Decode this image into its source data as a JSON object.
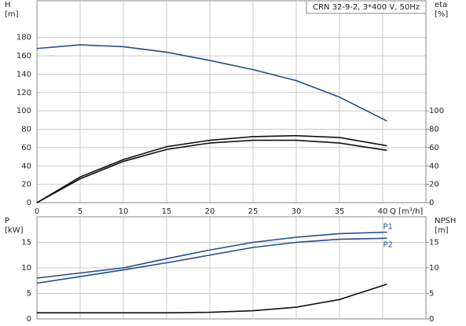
{
  "chart_data": [
    {
      "type": "line",
      "title": "CRN 32-9-2, 3*400 V, 50Hz",
      "ylabel": "H",
      "yunit": "[m]",
      "y2label": "eta",
      "y2unit": "[%]",
      "xlabel": "Q [m³/h]",
      "x": [
        0,
        5,
        10,
        15,
        20,
        25,
        30,
        35,
        40.5
      ],
      "xlim": [
        0,
        45
      ],
      "xticks": [
        0,
        5,
        10,
        15,
        20,
        25,
        30,
        35,
        40
      ],
      "ylim": [
        0,
        220
      ],
      "yticks": [
        0,
        20,
        40,
        60,
        80,
        100,
        120,
        140,
        160,
        180
      ],
      "y2lim": [
        0,
        220
      ],
      "y2ticks": [
        0,
        20,
        40,
        60,
        80,
        100
      ],
      "grid": true,
      "series": [
        {
          "color": "#1f4e8c",
          "axis": "y",
          "values": [
            168,
            172,
            170,
            164,
            155,
            145,
            133,
            115,
            89
          ]
        },
        {
          "color": "#111111",
          "axis": "y2",
          "values": [
            0,
            28,
            47,
            61,
            68,
            72,
            73,
            71,
            62
          ]
        },
        {
          "color": "#111111",
          "axis": "y2",
          "values": [
            0,
            26,
            45,
            58,
            65,
            68,
            68,
            65,
            57
          ]
        }
      ]
    },
    {
      "type": "line",
      "ylabel": "P",
      "yunit": "[kW]",
      "y2label": "NPSH",
      "y2unit": "[m]",
      "x": [
        0,
        5,
        10,
        15,
        20,
        25,
        30,
        35,
        40.5
      ],
      "xlim": [
        0,
        45
      ],
      "xticks": [
        0,
        5,
        10,
        15,
        20,
        25,
        30,
        35,
        40
      ],
      "ylim": [
        0,
        20
      ],
      "yticks": [
        0,
        5,
        10,
        15
      ],
      "y2lim": [
        0,
        20
      ],
      "y2ticks": [
        0,
        5,
        10,
        15
      ],
      "grid": true,
      "series": [
        {
          "name": "P1",
          "color": "#1f4e8c",
          "axis": "y",
          "values": [
            8,
            9,
            10,
            11.8,
            13.5,
            15,
            16,
            16.7,
            17
          ]
        },
        {
          "name": "P2",
          "color": "#1f4e8c",
          "axis": "y",
          "values": [
            7,
            8.3,
            9.6,
            11,
            12.5,
            14,
            15,
            15.6,
            15.8
          ]
        },
        {
          "color": "#111111",
          "axis": "y2",
          "values": [
            1.2,
            1.2,
            1.2,
            1.2,
            1.3,
            1.6,
            2.3,
            3.8,
            6.8
          ]
        }
      ]
    }
  ]
}
